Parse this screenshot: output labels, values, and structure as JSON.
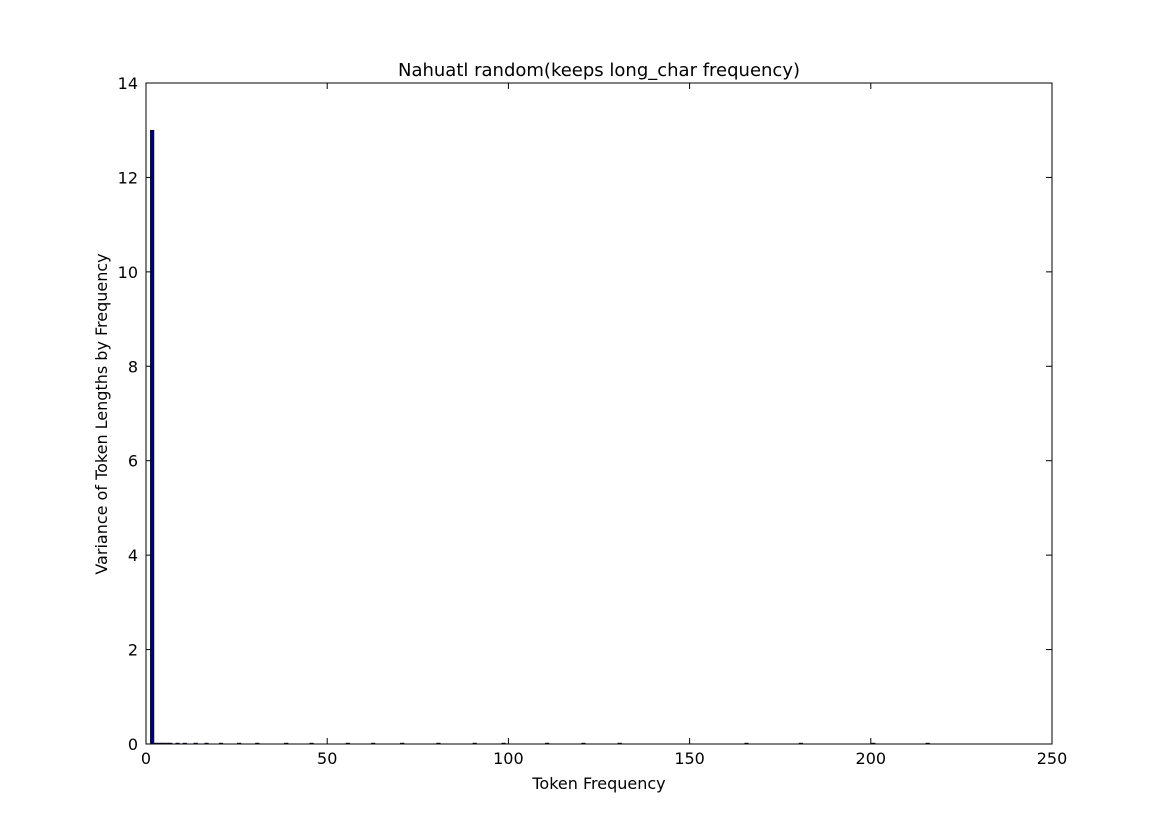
{
  "chart_data": {
    "type": "bar",
    "title": "Nahuatl random(keeps long_char frequency)",
    "xlabel": "Token Frequency",
    "ylabel": "Variance of Token Lengths by Frequency",
    "xlim": [
      0,
      250
    ],
    "ylim": [
      0,
      14
    ],
    "xticks": [
      0,
      50,
      100,
      150,
      200,
      250
    ],
    "yticks": [
      0,
      2,
      4,
      6,
      8,
      10,
      12,
      14
    ],
    "grid": false,
    "colors": {
      "bar": "#00007f",
      "axes": "#000000",
      "background": "#ffffff"
    },
    "bars": [
      {
        "x": 1,
        "value": 13.0
      },
      {
        "x": 2,
        "value": 0.02
      },
      {
        "x": 3,
        "value": 0.02
      },
      {
        "x": 4,
        "value": 0.02
      },
      {
        "x": 5,
        "value": 0.02
      },
      {
        "x": 6,
        "value": 0.02
      },
      {
        "x": 8,
        "value": 0.02
      },
      {
        "x": 10,
        "value": 0.02
      },
      {
        "x": 13,
        "value": 0.02
      },
      {
        "x": 16,
        "value": 0.02
      },
      {
        "x": 20,
        "value": 0.02
      },
      {
        "x": 25,
        "value": 0.02
      },
      {
        "x": 30,
        "value": 0.02
      },
      {
        "x": 38,
        "value": 0.02
      },
      {
        "x": 45,
        "value": 0.02
      },
      {
        "x": 55,
        "value": 0.02
      },
      {
        "x": 62,
        "value": 0.02
      },
      {
        "x": 70,
        "value": 0.02
      },
      {
        "x": 80,
        "value": 0.02
      },
      {
        "x": 90,
        "value": 0.02
      },
      {
        "x": 98,
        "value": 0.02
      },
      {
        "x": 110,
        "value": 0.02
      },
      {
        "x": 120,
        "value": 0.02
      },
      {
        "x": 130,
        "value": 0.02
      },
      {
        "x": 165,
        "value": 0.02
      },
      {
        "x": 180,
        "value": 0.02
      },
      {
        "x": 200,
        "value": 0.02
      },
      {
        "x": 215,
        "value": 0.02
      }
    ]
  }
}
